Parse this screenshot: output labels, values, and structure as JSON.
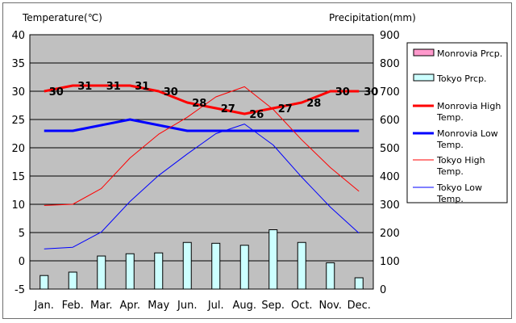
{
  "chart_data": {
    "type": "bar+line",
    "left_axis_title": "Temperature(℃)",
    "right_axis_title": "Precipitation(mm)",
    "categories": [
      "Jan.",
      "Feb.",
      "Mar.",
      "Apr.",
      "May",
      "Jun.",
      "Jul.",
      "Aug.",
      "Sep.",
      "Oct.",
      "Nov.",
      "Dec."
    ],
    "ylim_left": [
      -5,
      40
    ],
    "yticks_left": [
      "40",
      "35",
      "30",
      "25",
      "20",
      "15",
      "10",
      "5",
      "0",
      "-5"
    ],
    "ylim_right": [
      0,
      900
    ],
    "yticks_right": [
      "900",
      "800",
      "700",
      "600",
      "500",
      "400",
      "300",
      "200",
      "100",
      "0"
    ],
    "grid": true,
    "legend_position": "right",
    "bar_series": [
      {
        "name": "Monrovia Prcp.",
        "color": "#ff99cc",
        "values": [
          0,
          0,
          0,
          0,
          0,
          0,
          0,
          0,
          0,
          0,
          0,
          0
        ]
      },
      {
        "name": "Tokyo Prcp.",
        "color": "#ccffff",
        "values": [
          48,
          60,
          117,
          125,
          128,
          165,
          162,
          155,
          210,
          165,
          93,
          40
        ]
      }
    ],
    "line_series": [
      {
        "name": "Monrovia High Temp.",
        "color": "#ff0000",
        "width": 3,
        "values": [
          30,
          31,
          31,
          31,
          30,
          28,
          27,
          26,
          27,
          28,
          30,
          30
        ],
        "labels": [
          "30",
          "31",
          "31",
          "31",
          "30",
          "28",
          "27",
          "26",
          "27",
          "28",
          "30",
          "30"
        ]
      },
      {
        "name": "Monrovia Low Temp.",
        "color": "#0000ff",
        "width": 3,
        "values": [
          23,
          23,
          24,
          25,
          24,
          23,
          23,
          23,
          23,
          23,
          23,
          23
        ]
      },
      {
        "name": "Tokyo High Temp.",
        "color": "#ff0000",
        "width": 1,
        "values": [
          9.8,
          10,
          12.8,
          18.2,
          22.4,
          25.4,
          29,
          30.8,
          26.8,
          21.4,
          16.5,
          12.3
        ]
      },
      {
        "name": "Tokyo Low Temp.",
        "color": "#0000ff",
        "width": 1,
        "values": [
          2.1,
          2.4,
          5.1,
          10.5,
          15.1,
          18.9,
          22.5,
          24.2,
          20.5,
          14.8,
          9.5,
          4.9
        ]
      }
    ],
    "legend": [
      {
        "label": "Monrovia Prcp.",
        "kind": "box",
        "color": "#ff99cc"
      },
      {
        "label": "Tokyo Prcp.",
        "kind": "box",
        "color": "#ccffff"
      },
      {
        "label": "Monrovia High Temp.",
        "kind": "line",
        "color": "#ff0000",
        "width": 3
      },
      {
        "label": "Monrovia Low Temp.",
        "kind": "line",
        "color": "#0000ff",
        "width": 3
      },
      {
        "label": "Tokyo High Temp.",
        "kind": "line",
        "color": "#ff0000",
        "width": 1
      },
      {
        "label": "Tokyo Low Temp.",
        "kind": "line",
        "color": "#0000ff",
        "width": 1
      }
    ]
  }
}
